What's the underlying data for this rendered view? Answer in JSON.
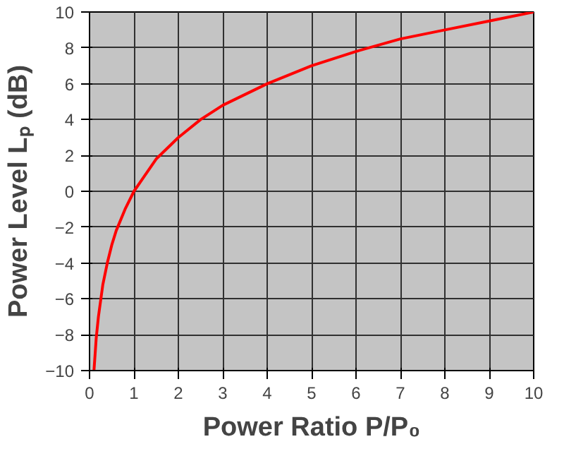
{
  "chart_data": {
    "type": "line",
    "xlabel": "Power Ratio P/P₀",
    "ylabel": "Power Level Lₚ (dB)",
    "x": [
      0.1,
      0.15,
      0.2,
      0.3,
      0.4,
      0.5,
      0.6,
      0.8,
      1,
      1.5,
      2,
      2.5,
      3,
      4,
      5,
      6,
      7,
      8,
      9,
      10
    ],
    "series": [
      {
        "color": "#ff0000",
        "values": [
          -10,
          -8.2,
          -7,
          -5.2,
          -4,
          -3,
          -2.2,
          -1,
          0,
          1.8,
          3,
          4,
          4.8,
          6,
          7,
          7.8,
          8.5,
          9,
          9.5,
          10
        ]
      }
    ],
    "xlim": [
      0,
      10
    ],
    "ylim": [
      -10,
      10
    ],
    "xticks": [
      0,
      1,
      2,
      3,
      4,
      5,
      6,
      7,
      8,
      9,
      10
    ],
    "yticks": [
      -10,
      -8,
      -6,
      -4,
      -2,
      0,
      2,
      4,
      6,
      8,
      10
    ],
    "grid": true,
    "marker": "none",
    "line_style": "solid"
  }
}
